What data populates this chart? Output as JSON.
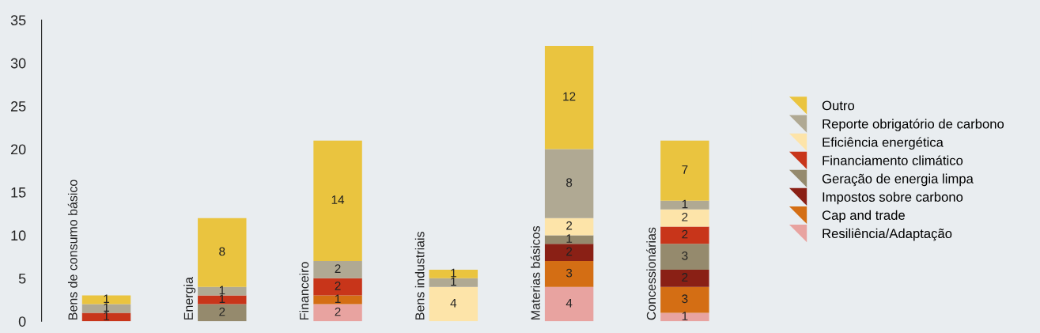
{
  "chart_data": {
    "type": "bar",
    "stacked": true,
    "data_labels": true,
    "legend": "right",
    "grid": false,
    "categories": [
      "Bens de consumo básico",
      "Energia",
      "Financeiro",
      "Bens industriais",
      "Materias básicos",
      "Concessionárias"
    ],
    "ylim": [
      0,
      35
    ],
    "yticks": [
      0,
      5,
      10,
      15,
      20,
      25,
      30,
      35
    ],
    "series": [
      {
        "name": "Resiliência/Adaptação",
        "color": "#e8a3a0",
        "values": [
          null,
          null,
          2,
          null,
          4,
          1
        ]
      },
      {
        "name": "Cap and trade",
        "color": "#d46e14",
        "values": [
          null,
          null,
          1,
          null,
          3,
          3
        ]
      },
      {
        "name": "Impostos sobre carbono",
        "color": "#8a2015",
        "values": [
          null,
          null,
          null,
          null,
          2,
          2
        ]
      },
      {
        "name": "Geração de energia limpa",
        "color": "#958a6d",
        "values": [
          null,
          2,
          null,
          null,
          1,
          3
        ]
      },
      {
        "name": "Financiamento climático",
        "color": "#c8351a",
        "values": [
          1,
          1,
          2,
          null,
          null,
          2
        ]
      },
      {
        "name": "Eficiência energética",
        "color": "#fde4a9",
        "values": [
          null,
          null,
          null,
          4,
          2,
          2
        ]
      },
      {
        "name": "Reporte obrigatório de carbono",
        "color": "#b0a993",
        "values": [
          1,
          1,
          2,
          1,
          8,
          1
        ]
      },
      {
        "name": "Outro",
        "color": "#eac43f",
        "values": [
          1,
          8,
          14,
          1,
          12,
          7
        ]
      }
    ]
  }
}
